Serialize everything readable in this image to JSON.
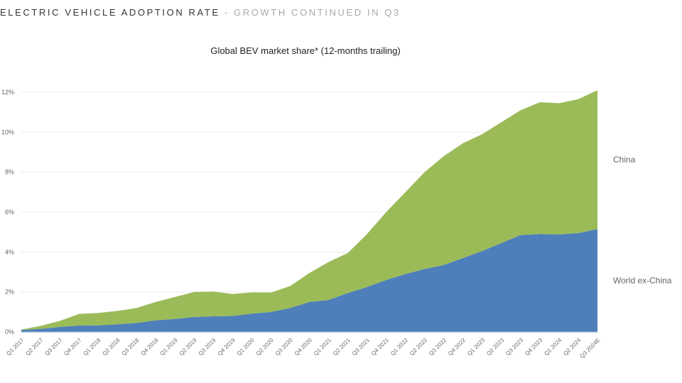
{
  "header": {
    "main": "ELECTRIC VEHICLE ADOPTION RATE",
    "separator": " - ",
    "sub": "GROWTH CONTINUED IN Q3"
  },
  "chart_data": {
    "type": "area",
    "stacked": true,
    "title": "Global BEV market share* (12-months trailing)",
    "xlabel": "",
    "ylabel": "",
    "ylim": [
      0,
      12
    ],
    "y_ticks": [
      "0%",
      "2%",
      "4%",
      "6%",
      "8%",
      "10%",
      "12%"
    ],
    "y_tick_values": [
      0,
      2,
      4,
      6,
      8,
      10,
      12
    ],
    "grid": true,
    "legend_placement": "right (inline labels)",
    "categories": [
      "Q1 2017",
      "Q2 2017",
      "Q3 2017",
      "Q4 2017",
      "Q1 2018",
      "Q2 2018",
      "Q3 2018",
      "Q4 2018",
      "Q1 2019",
      "Q2 2019",
      "Q3 2019",
      "Q4 2019",
      "Q1 2020",
      "Q2 2020",
      "Q3 2020",
      "Q4 2020",
      "Q1 2021",
      "Q2 2021",
      "Q3 2021",
      "Q4 2021",
      "Q1 2022",
      "Q2 2022",
      "Q3 2022",
      "Q4 2022",
      "Q1 2023",
      "Q2 2023",
      "Q3 2023",
      "Q4 2023",
      "Q1 2024",
      "Q2 2024",
      "Q3 2024E"
    ],
    "series": [
      {
        "name": "World ex-China",
        "color": "#4e7fba",
        "values": [
          0.1,
          0.15,
          0.25,
          0.32,
          0.33,
          0.38,
          0.45,
          0.58,
          0.65,
          0.75,
          0.78,
          0.8,
          0.92,
          1.0,
          1.2,
          1.5,
          1.6,
          1.95,
          2.25,
          2.6,
          2.9,
          3.15,
          3.35,
          3.7,
          4.05,
          4.45,
          4.85,
          4.9,
          4.88,
          4.95,
          5.15
        ]
      },
      {
        "name": "China",
        "color": "#9bbb59",
        "values": [
          0.02,
          0.15,
          0.3,
          0.58,
          0.62,
          0.67,
          0.75,
          0.92,
          1.1,
          1.25,
          1.24,
          1.1,
          1.06,
          0.97,
          1.1,
          1.45,
          1.9,
          2.0,
          2.65,
          3.4,
          4.1,
          4.85,
          5.45,
          5.75,
          5.85,
          6.05,
          6.25,
          6.6,
          6.57,
          6.7,
          6.95
        ]
      }
    ]
  }
}
